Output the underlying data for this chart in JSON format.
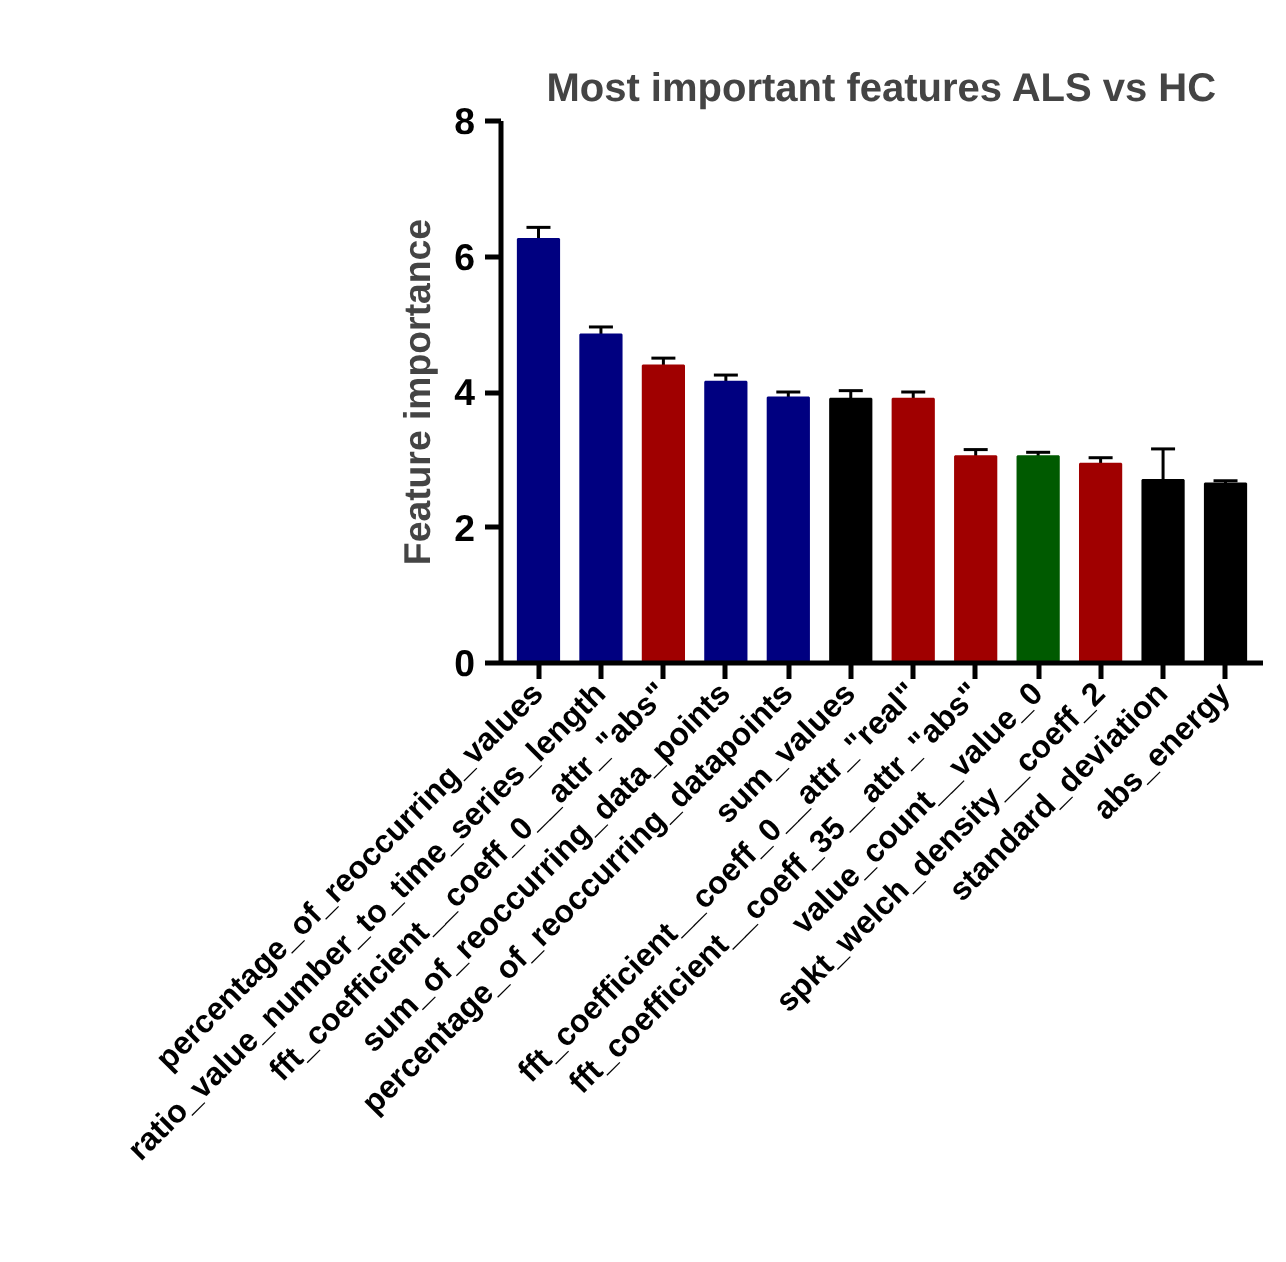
{
  "chart_data": {
    "type": "bar",
    "title": "Most important features ALS vs HC",
    "ylabel": "Feature importance",
    "categories": [
      "percentage_of_reoccurring_values",
      "ratio_value_number_to_time_series_length",
      "fft_coefficient__coeff_0__attr_\"abs\"",
      "sum_of_reoccurring_data_points",
      "percentage_of_reoccurring_datapoints",
      "sum_values",
      "fft_coefficient__coeff_0__attr_\"real\"",
      "fft_coefficient__coeff_35__attr_\"abs\"",
      "value_count__value_0",
      "spkt_welch_density__coeff_2",
      "standard_deviation",
      "abs_energy"
    ],
    "values": [
      6.26,
      4.85,
      4.39,
      4.15,
      3.92,
      3.9,
      3.9,
      3.05,
      3.05,
      2.94,
      2.7,
      2.65
    ],
    "errors": [
      0.17,
      0.11,
      0.11,
      0.1,
      0.08,
      0.12,
      0.1,
      0.1,
      0.06,
      0.09,
      0.46,
      0.04
    ],
    "colors": [
      "#000080",
      "#000080",
      "#a00000",
      "#000080",
      "#000080",
      "#000000",
      "#a00000",
      "#a00000",
      "#005a00",
      "#a00000",
      "#000000",
      "#000000"
    ],
    "ylim": [
      0,
      8
    ],
    "yticks": [
      0,
      2,
      4,
      6,
      8
    ],
    "grid": false
  }
}
